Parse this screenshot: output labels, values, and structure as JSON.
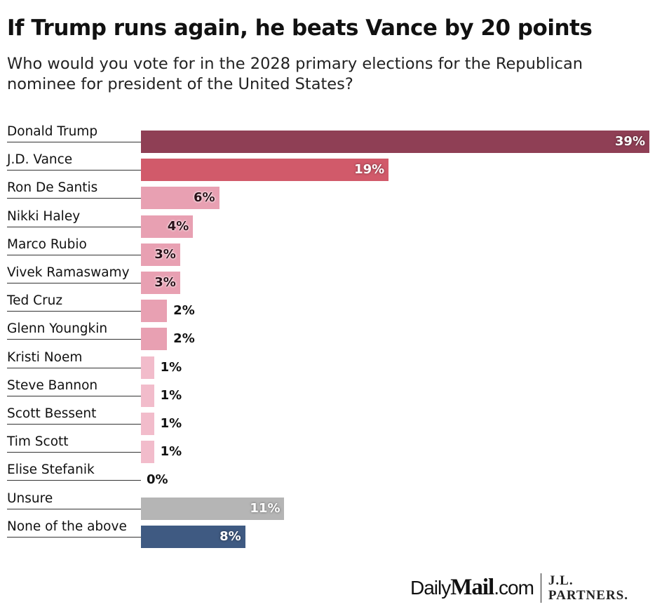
{
  "title": "If Trump runs again, he beats Vance by 20 points",
  "subtitle": "Who would you vote for in the 2028 primary elections for the Republican nominee for president of the United States?",
  "chart_data": {
    "type": "bar",
    "orientation": "horizontal",
    "categories": [
      "Donald Trump",
      "J.D. Vance",
      "Ron De Santis",
      "Nikki Haley",
      "Marco Rubio",
      "Vivek Ramaswamy",
      "Ted Cruz",
      "Glenn Youngkin",
      "Kristi Noem",
      "Steve Bannon",
      "Scott Bessent",
      "Tim Scott",
      "Elise Stefanik",
      "Unsure",
      "None of the above"
    ],
    "values": [
      39,
      19,
      6,
      4,
      3,
      3,
      2,
      2,
      1,
      1,
      1,
      1,
      0,
      11,
      8
    ],
    "value_labels": [
      "39%",
      "19%",
      "6%",
      "4%",
      "3%",
      "3%",
      "2%",
      "2%",
      "1%",
      "1%",
      "1%",
      "1%",
      "0%",
      "11%",
      "8%"
    ],
    "colors": [
      "#8f3f55",
      "#d15a6a",
      "#e8a0b2",
      "#e8a0b2",
      "#e8a0b2",
      "#e8a0b2",
      "#e8a0b2",
      "#e8a0b2",
      "#f2bccb",
      "#f2bccb",
      "#f2bccb",
      "#f2bccb",
      "#f2bccb",
      "#b5b5b5",
      "#3f5a82"
    ],
    "unit": "%",
    "xlim": [
      0,
      39
    ],
    "grid": false,
    "legend": "none"
  },
  "logo": {
    "daily": "Daily",
    "mail": "Mail",
    "com": ".com",
    "jl1": "J.L.",
    "jl2": "PARTNERS."
  }
}
